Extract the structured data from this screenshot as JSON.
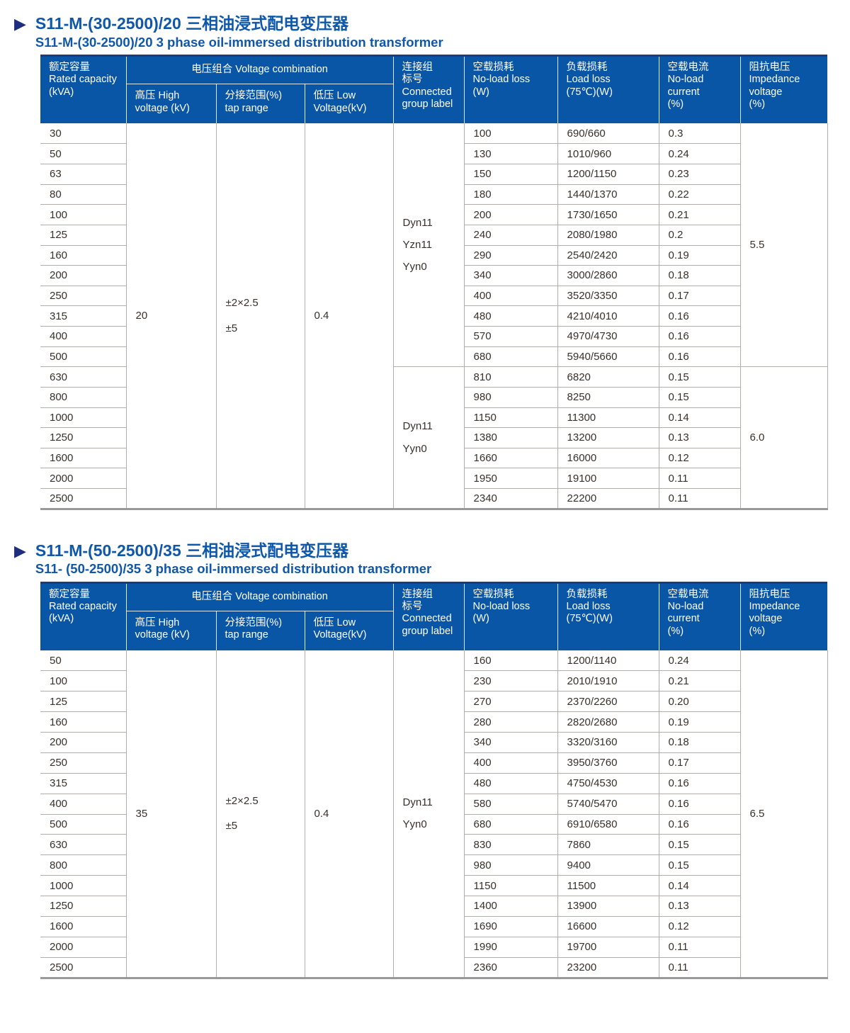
{
  "tables": [
    {
      "title_zh": "S11-M-(30-2500)/20 三相油浸式配电变压器",
      "title_en": "S11-M-(30-2500)/20 3 phase oil-immersed distribution transformer",
      "header": {
        "capacity": "额定容量\nRated capacity\n(kVA)",
        "voltage_combination": "电压组合 Voltage combination",
        "hv": "高压 High\nvoltage (kV)",
        "tap": "分接范围(%)\ntap range",
        "lv": "低压 Low\nVoltage(kV)",
        "group": "连接组\n标号\nConnected\ngroup label",
        "noload": "空载损耗\nNo-load loss\n(W)",
        "load": "负载损耗\nLoad loss\n(75℃)(W)",
        "current": "空载电流\nNo-load current\n(%)",
        "impedance": "阻抗电压\nImpedance\nvoltage\n(%)"
      },
      "hv_value": "20",
      "tap_lines": [
        "±2×2.5",
        "±5"
      ],
      "lv_value": "0.4",
      "sections": [
        {
          "group_labels": [
            "Dyn11",
            "Yzn11",
            "Yyn0"
          ],
          "impedance": "5.5",
          "rows": [
            [
              "30",
              "100",
              "690/660",
              "0.3"
            ],
            [
              "50",
              "130",
              "1010/960",
              "0.24"
            ],
            [
              "63",
              "150",
              "1200/1150",
              "0.23"
            ],
            [
              "80",
              "180",
              "1440/1370",
              "0.22"
            ],
            [
              "100",
              "200",
              "1730/1650",
              "0.21"
            ],
            [
              "125",
              "240",
              "2080/1980",
              "0.2"
            ],
            [
              "160",
              "290",
              "2540/2420",
              "0.19"
            ],
            [
              "200",
              "340",
              "3000/2860",
              "0.18"
            ],
            [
              "250",
              "400",
              "3520/3350",
              "0.17"
            ],
            [
              "315",
              "480",
              "4210/4010",
              "0.16"
            ],
            [
              "400",
              "570",
              "4970/4730",
              "0.16"
            ],
            [
              "500",
              "680",
              "5940/5660",
              "0.16"
            ]
          ]
        },
        {
          "group_labels": [
            "Dyn11",
            "Yyn0"
          ],
          "impedance": "6.0",
          "rows": [
            [
              "630",
              "810",
              "6820",
              "0.15"
            ],
            [
              "800",
              "980",
              "8250",
              "0.15"
            ],
            [
              "1000",
              "1150",
              "11300",
              "0.14"
            ],
            [
              "1250",
              "1380",
              "13200",
              "0.13"
            ],
            [
              "1600",
              "1660",
              "16000",
              "0.12"
            ],
            [
              "2000",
              "1950",
              "19100",
              "0.11"
            ],
            [
              "2500",
              "2340",
              "22200",
              "0.11"
            ]
          ]
        }
      ]
    },
    {
      "title_zh": "S11-M-(50-2500)/35 三相油浸式配电变压器",
      "title_en": "S11- (50-2500)/35 3 phase oil-immersed distribution transformer",
      "header": {
        "capacity": "额定容量\nRated capacity\n(kVA)",
        "voltage_combination": "电压组合 Voltage combination",
        "hv": "高压 High\nvoltage (kV)",
        "tap": "分接范围(%)\ntap range",
        "lv": "低压 Low\nVoltage(kV)",
        "group": "连接组\n标号\nConnected\ngroup label",
        "noload": "空载损耗\nNo-load loss\n(W)",
        "load": "负载损耗\nLoad loss\n(75℃)(W)",
        "current": "空载电流\nNo-load current\n(%)",
        "impedance": "阻抗电压\nImpedance\nvoltage\n(%)"
      },
      "hv_value": "35",
      "tap_lines": [
        "±2×2.5",
        "±5"
      ],
      "lv_value": "0.4",
      "sections": [
        {
          "group_labels": [
            "Dyn11",
            "Yyn0"
          ],
          "impedance": "6.5",
          "rows": [
            [
              "50",
              "160",
              "1200/1140",
              "0.24"
            ],
            [
              "100",
              "230",
              "2010/1910",
              "0.21"
            ],
            [
              "125",
              "270",
              "2370/2260",
              "0.20"
            ],
            [
              "160",
              "280",
              "2820/2680",
              "0.19"
            ],
            [
              "200",
              "340",
              "3320/3160",
              "0.18"
            ],
            [
              "250",
              "400",
              "3950/3760",
              "0.17"
            ],
            [
              "315",
              "480",
              "4750/4530",
              "0.16"
            ],
            [
              "400",
              "580",
              "5740/5470",
              "0.16"
            ],
            [
              "500",
              "680",
              "6910/6580",
              "0.16"
            ],
            [
              "630",
              "830",
              "7860",
              "0.15"
            ],
            [
              "800",
              "980",
              "9400",
              "0.15"
            ],
            [
              "1000",
              "1150",
              "11500",
              "0.14"
            ],
            [
              "1250",
              "1400",
              "13900",
              "0.13"
            ],
            [
              "1600",
              "1690",
              "16600",
              "0.12"
            ],
            [
              "2000",
              "1990",
              "19700",
              "0.11"
            ],
            [
              "2500",
              "2360",
              "23200",
              "0.11"
            ]
          ]
        }
      ]
    }
  ]
}
